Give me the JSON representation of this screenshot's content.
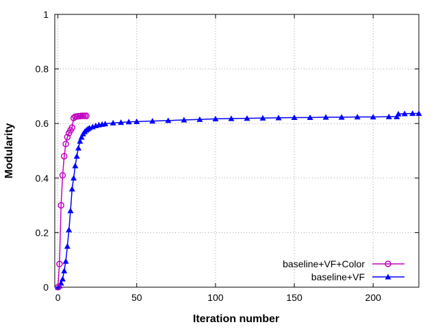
{
  "chart_data": {
    "type": "line",
    "xlabel": "Iteration number",
    "ylabel": "Modularity",
    "xlim": [
      -2,
      229
    ],
    "ylim": [
      0,
      1
    ],
    "xticks": [
      0,
      50,
      100,
      150,
      200
    ],
    "xtick_labels": [
      "0",
      "50",
      "100",
      "150",
      "200"
    ],
    "yticks": [
      0,
      0.2,
      0.4,
      0.6,
      0.8,
      1
    ],
    "ytick_labels": [
      "0",
      "0.2",
      "0.4",
      "0.6",
      "0.8",
      "1"
    ],
    "grid": true,
    "legend_position": "bottom-right",
    "series": [
      {
        "name": "baseline+VF+Color",
        "color": "#c000c0",
        "marker": "open-circle",
        "x": [
          0,
          1,
          2,
          3,
          4,
          5,
          6,
          7,
          8,
          9,
          10,
          11,
          12,
          13,
          14,
          15,
          16,
          17,
          18
        ],
        "y": [
          0,
          0.085,
          0.3,
          0.41,
          0.48,
          0.525,
          0.55,
          0.565,
          0.575,
          0.585,
          0.62,
          0.625,
          0.626,
          0.627,
          0.627,
          0.628,
          0.628,
          0.628,
          0.628
        ]
      },
      {
        "name": "baseline+VF",
        "color": "#0000ff",
        "marker": "filled-triangle",
        "x": [
          0,
          1,
          2,
          3,
          4,
          5,
          6,
          7,
          8,
          9,
          10,
          11,
          12,
          13,
          14,
          15,
          16,
          17,
          18,
          19,
          20,
          22,
          24,
          26,
          28,
          30,
          35,
          40,
          45,
          50,
          60,
          70,
          80,
          90,
          100,
          110,
          120,
          130,
          140,
          150,
          160,
          170,
          180,
          190,
          200,
          210,
          215,
          216,
          220,
          225,
          229
        ],
        "y": [
          0,
          0.005,
          0.015,
          0.03,
          0.06,
          0.095,
          0.15,
          0.21,
          0.28,
          0.36,
          0.4,
          0.445,
          0.48,
          0.51,
          0.535,
          0.55,
          0.562,
          0.57,
          0.576,
          0.58,
          0.584,
          0.588,
          0.592,
          0.595,
          0.597,
          0.599,
          0.602,
          0.604,
          0.606,
          0.607,
          0.609,
          0.611,
          0.613,
          0.615,
          0.617,
          0.618,
          0.619,
          0.62,
          0.621,
          0.622,
          0.622,
          0.623,
          0.623,
          0.624,
          0.624,
          0.625,
          0.625,
          0.635,
          0.636,
          0.637,
          0.637
        ]
      }
    ]
  }
}
